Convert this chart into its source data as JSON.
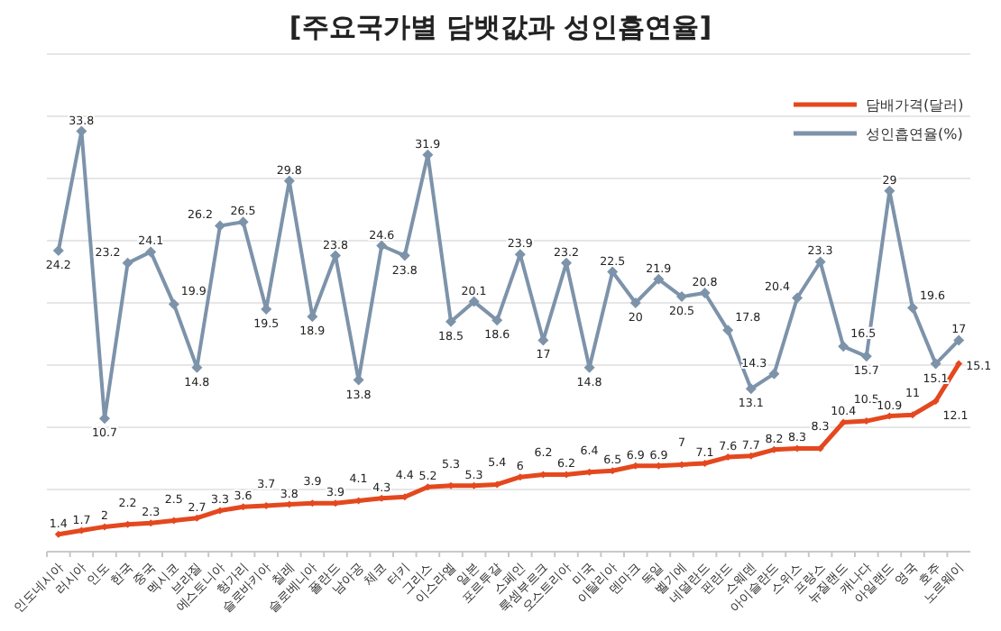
{
  "chart_data": {
    "type": "line",
    "title": "[주요국가별 담뱃값과 성인흡연율]",
    "categories": [
      "인도네시아",
      "러시아",
      "인도",
      "한국",
      "중국",
      "멕시코",
      "브라질",
      "에스토니아",
      "헝가리",
      "슬로바키아",
      "칠레",
      "슬로베니아",
      "폴란드",
      "남아공",
      "체코",
      "터키",
      "그리스",
      "이스라엘",
      "일본",
      "포르투갈",
      "스페인",
      "룩셈부르크",
      "오스트리아",
      "미국",
      "이탈리아",
      "덴마크",
      "독일",
      "벨기에",
      "네덜란드",
      "핀란드",
      "스웨덴",
      "아이슬란드",
      "스위스",
      "프랑스",
      "뉴질랜드",
      "캐나다",
      "아일랜드",
      "영국",
      "호주",
      "노르웨이"
    ],
    "series": [
      {
        "name": "담배가격(달러)",
        "color": "#e4481e",
        "values": [
          1.4,
          1.7,
          2,
          2.2,
          2.3,
          2.5,
          2.7,
          3.3,
          3.6,
          3.7,
          3.8,
          3.9,
          3.9,
          4.1,
          4.3,
          4.4,
          5.2,
          5.3,
          5.3,
          5.4,
          6,
          6.2,
          6.2,
          6.4,
          6.5,
          6.9,
          6.9,
          7,
          7.1,
          7.6,
          7.7,
          8.2,
          8.3,
          8.3,
          10.4,
          10.5,
          10.9,
          11,
          12.1,
          15.1
        ]
      },
      {
        "name": "성인흡연율(%)",
        "color": "#7d93aa",
        "values": [
          24.2,
          33.8,
          10.7,
          23.2,
          24.1,
          19.9,
          14.8,
          26.2,
          26.5,
          19.5,
          29.8,
          18.9,
          23.8,
          13.8,
          24.6,
          23.8,
          31.9,
          18.5,
          20.1,
          18.6,
          23.9,
          17,
          23.2,
          14.8,
          22.5,
          20,
          21.9,
          20.5,
          20.8,
          17.8,
          13.1,
          14.3,
          20.4,
          23.3,
          16.5,
          15.7,
          29,
          19.6,
          15.1,
          17
        ]
      }
    ],
    "ylim": [
      0,
      40
    ],
    "yticks": [
      {
        "value": 0,
        "label": null
      },
      {
        "value": 5,
        "label": null
      },
      {
        "value": 10,
        "label": null
      },
      {
        "value": 15,
        "label": null
      },
      {
        "value": 20,
        "label": null
      },
      {
        "value": 25,
        "label": null
      },
      {
        "value": 30,
        "label": null
      },
      {
        "value": 35,
        "label": null
      },
      {
        "value": 40,
        "label": null
      }
    ],
    "tick_labels": "x",
    "grid": "y",
    "legend": "top right",
    "marker": "diamond",
    "line_style": "solid",
    "data_labels": true
  }
}
